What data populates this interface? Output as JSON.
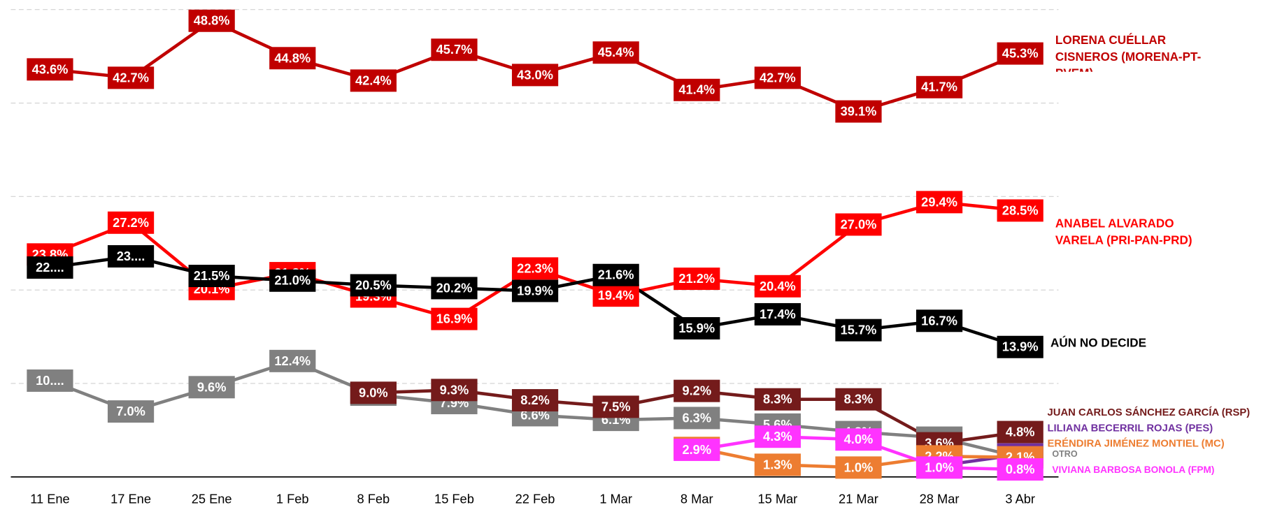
{
  "chart_data": {
    "type": "line",
    "categories": [
      "11 Ene",
      "17 Ene",
      "25 Ene",
      "1 Feb",
      "8 Feb",
      "15 Feb",
      "22 Feb",
      "1 Mar",
      "8 Mar",
      "15 Mar",
      "21 Mar",
      "28 Mar",
      "3 Abr"
    ],
    "ylim": [
      0,
      50
    ],
    "yticks": [
      10,
      20,
      30,
      40,
      50
    ],
    "grid": true,
    "series": [
      {
        "name": "LORENA CUÉLLAR CISNEROS (MORENA-PT-PVEM)",
        "color": "#c00000",
        "values": [
          43.6,
          42.7,
          48.8,
          44.8,
          42.4,
          45.7,
          43.0,
          45.4,
          41.4,
          42.7,
          39.1,
          41.7,
          45.3
        ],
        "value_labels": [
          "43.6%",
          "42.7%",
          "48.8%",
          "44.8%",
          "42.4%",
          "45.7%",
          "43.0%",
          "45.4%",
          "41.4%",
          "42.7%",
          "39.1%",
          "41.7%",
          "45.3%"
        ]
      },
      {
        "name": "ANABEL ALVARADO VARELA (PRI-PAN-PRD)",
        "color": "#ff0000",
        "values": [
          23.8,
          27.2,
          20.1,
          21.8,
          19.3,
          16.9,
          22.3,
          19.4,
          21.2,
          20.4,
          27.0,
          29.4,
          28.5
        ],
        "value_labels": [
          "23.8%",
          "27.2%",
          "20.1%",
          "21.8%",
          "19.3%",
          "16.9%",
          "22.3%",
          "19.4%",
          "21.2%",
          "20.4%",
          "27.0%",
          "29.4%",
          "28.5%"
        ]
      },
      {
        "name": "AÚN NO DECIDE",
        "color": "#000000",
        "values": [
          22.4,
          23.6,
          21.5,
          21.0,
          20.5,
          20.2,
          19.9,
          21.6,
          15.9,
          17.4,
          15.7,
          16.7,
          13.9
        ],
        "value_labels": [
          "22....",
          "23....",
          "21.5%",
          "21.0%",
          "20.5%",
          "20.2%",
          "19.9%",
          "21.6%",
          "15.9%",
          "17.4%",
          "15.7%",
          "16.7%",
          "13.9%"
        ]
      },
      {
        "name": "OTRO",
        "color": "#808080",
        "values": [
          10.3,
          7.0,
          9.6,
          12.4,
          8.8,
          7.9,
          6.6,
          6.1,
          6.3,
          5.6,
          4.8,
          4.2,
          2.1
        ],
        "value_labels": [
          "10....",
          "7.0%",
          "9.6%",
          "12.4%",
          "8.8%",
          "7.9%",
          "6.6%",
          "6.1%",
          "6.3%",
          "5.6%",
          "4.8%",
          "4.2%",
          "2.1%"
        ]
      },
      {
        "name": "JUAN CARLOS SÁNCHEZ GARCÍA (RSP)",
        "color": "#741b1b",
        "values": [
          null,
          null,
          null,
          null,
          9.0,
          9.3,
          8.2,
          7.5,
          9.2,
          8.3,
          8.3,
          3.6,
          4.8
        ],
        "value_labels": [
          null,
          null,
          null,
          null,
          "9.0%",
          "9.3%",
          "8.2%",
          "7.5%",
          "9.2%",
          "8.3%",
          "8.3%",
          "3.6%",
          "4.8%"
        ]
      },
      {
        "name": "LILIANA BECERRIL ROJAS (PES)",
        "color": "#7030a0",
        "values": [
          null,
          null,
          null,
          null,
          null,
          null,
          null,
          null,
          null,
          null,
          null,
          1.2,
          2.4
        ],
        "value_labels": [
          null,
          null,
          null,
          null,
          null,
          null,
          null,
          null,
          null,
          null,
          null,
          "1.2%",
          "2.4%"
        ]
      },
      {
        "name": "ERÉNDIRA JIMÉNEZ MONTIEL (MC)",
        "color": "#ed7d31",
        "values": [
          null,
          null,
          null,
          null,
          null,
          null,
          null,
          null,
          3.1,
          1.3,
          1.0,
          2.2,
          2.1
        ],
        "value_labels": [
          null,
          null,
          null,
          null,
          null,
          null,
          null,
          null,
          "3.1%",
          "1.3%",
          "1.0%",
          "2.2%",
          "2.1%"
        ]
      },
      {
        "name": "VIVIANA BARBOSA BONOLA (FPM)",
        "color": "#ff33ff",
        "values": [
          null,
          null,
          null,
          null,
          null,
          null,
          null,
          null,
          2.9,
          4.3,
          4.0,
          1.0,
          0.8
        ],
        "value_labels": [
          null,
          null,
          null,
          null,
          null,
          null,
          null,
          null,
          "2.9%",
          "4.3%",
          "4.0%",
          "1.0%",
          "0.8%"
        ]
      }
    ]
  }
}
